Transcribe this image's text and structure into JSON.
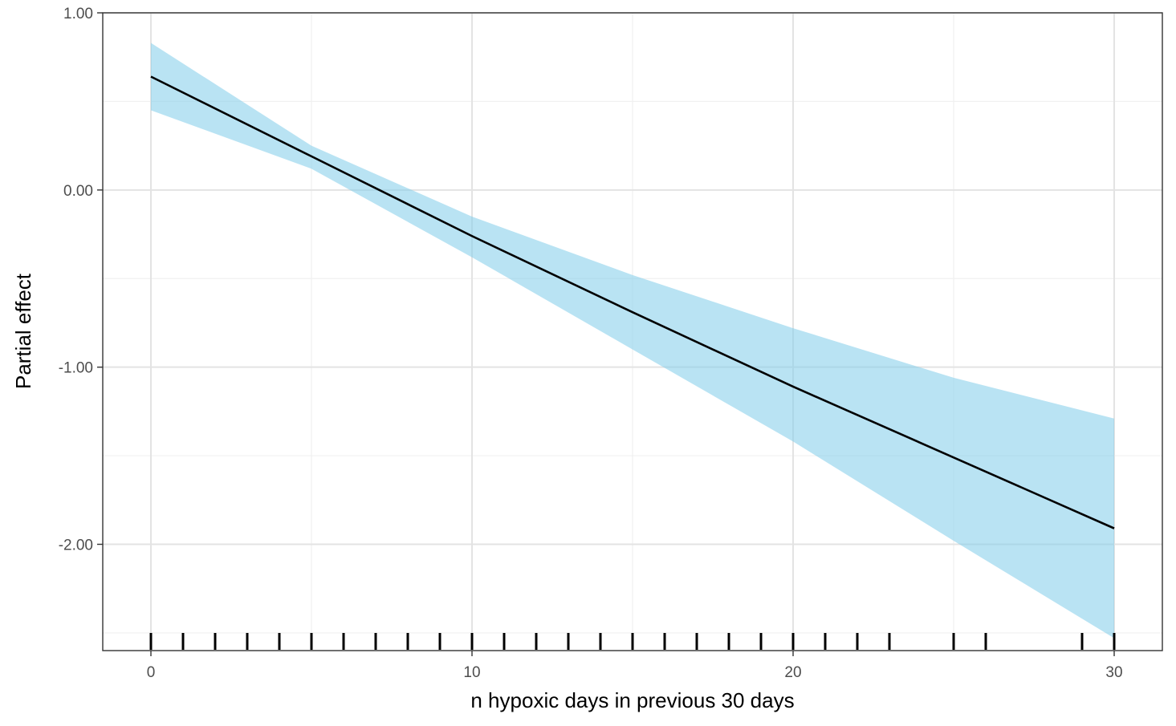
{
  "chart_data": {
    "type": "line",
    "title": "",
    "xlabel": "n hypoxic days in previous 30 days",
    "ylabel": "Partial effect",
    "xlim": [
      -1.5,
      31.5
    ],
    "ylim": [
      -2.6,
      1.0
    ],
    "xticks": [
      0,
      10,
      20,
      30
    ],
    "xtick_labels": [
      "0",
      "10",
      "20",
      "30"
    ],
    "yticks": [
      1.0,
      0.0,
      -1.0,
      -2.0
    ],
    "ytick_labels": [
      "1.00",
      "0.00",
      "-1.00",
      "-2.00"
    ],
    "grid": true,
    "legend": "none",
    "series": [
      {
        "x": [
          0,
          5,
          10,
          15,
          20,
          25,
          30
        ],
        "y": [
          0.64,
          0.19,
          -0.26,
          -0.69,
          -1.11,
          -1.51,
          -1.91
        ],
        "lower": [
          0.45,
          0.12,
          -0.38,
          -0.9,
          -1.42,
          -1.98,
          -2.53
        ],
        "upper": [
          0.83,
          0.25,
          -0.15,
          -0.48,
          -0.78,
          -1.06,
          -1.29
        ],
        "line_color": "#000000",
        "band_color": "#87ceeb"
      }
    ],
    "rug_x": [
      0,
      1,
      2,
      3,
      4,
      5,
      6,
      7,
      8,
      9,
      10,
      11,
      12,
      13,
      14,
      15,
      16,
      17,
      18,
      19,
      20,
      21,
      22,
      23,
      25,
      26,
      29,
      30
    ]
  }
}
